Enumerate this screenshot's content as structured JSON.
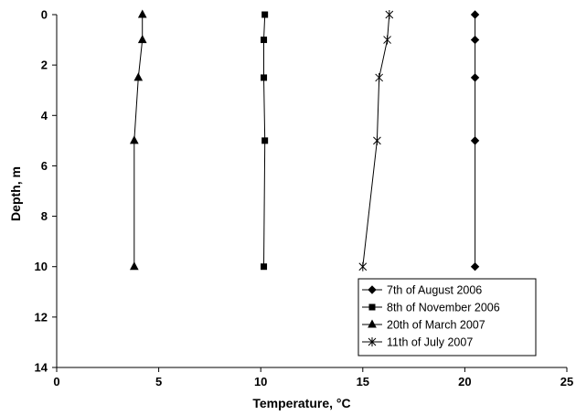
{
  "chart_data": {
    "type": "scatter",
    "xlabel": "Temperature, ",
    "xlabel_unit": "°C",
    "ylabel": "Depth,  m",
    "xlim": [
      0,
      25
    ],
    "ylim": [
      0,
      14
    ],
    "y_inverted": true,
    "x_ticks": [
      "0",
      "5",
      "10",
      "15",
      "20",
      "25"
    ],
    "y_ticks": [
      "0",
      "2",
      "4",
      "6",
      "8",
      "10",
      "12",
      "14"
    ],
    "grid": false,
    "legend_position": "bottom-right",
    "series": [
      {
        "name": "7th of August 2006",
        "marker": "diamond",
        "color": "#000000",
        "points": [
          [
            20.5,
            0
          ],
          [
            20.5,
            1
          ],
          [
            20.5,
            2.5
          ],
          [
            20.5,
            5
          ],
          [
            20.5,
            10
          ]
        ]
      },
      {
        "name": "8th of November 2006",
        "marker": "square",
        "color": "#000000",
        "points": [
          [
            10.2,
            0
          ],
          [
            10.15,
            1
          ],
          [
            10.15,
            2.5
          ],
          [
            10.2,
            5
          ],
          [
            10.15,
            10
          ]
        ]
      },
      {
        "name": "20th of March 2007",
        "marker": "triangle",
        "color": "#000000",
        "points": [
          [
            4.2,
            0
          ],
          [
            4.2,
            1
          ],
          [
            4.0,
            2.5
          ],
          [
            3.8,
            5
          ],
          [
            3.8,
            10
          ]
        ]
      },
      {
        "name": "11th of July 2007",
        "marker": "star",
        "color": "#000000",
        "points": [
          [
            16.3,
            0
          ],
          [
            16.2,
            1
          ],
          [
            15.8,
            2.5
          ],
          [
            15.7,
            5
          ],
          [
            15.0,
            10
          ]
        ]
      }
    ]
  }
}
